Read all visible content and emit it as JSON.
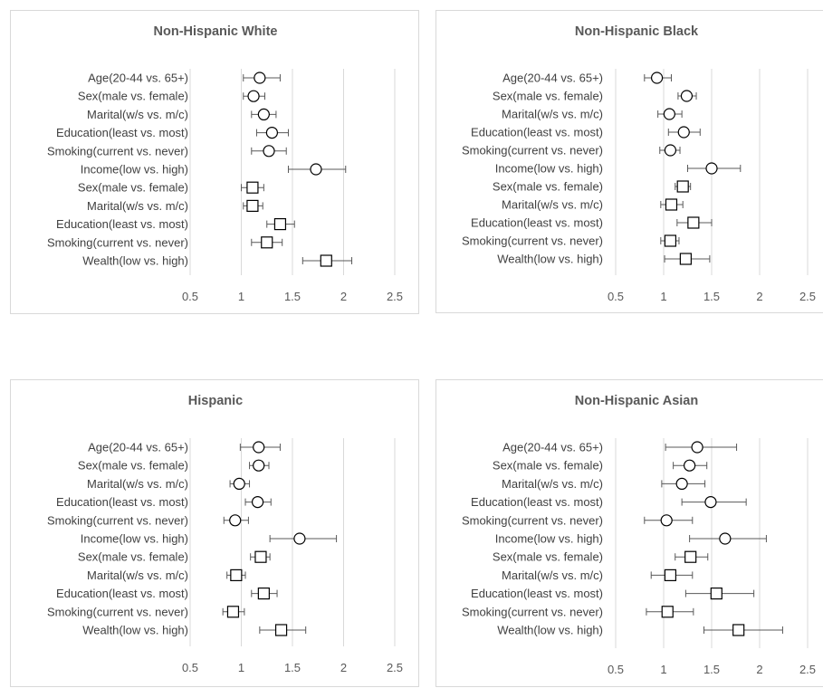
{
  "chart_data": [
    {
      "type": "scatter",
      "title": "Non-Hispanic White",
      "xlim": [
        0.5,
        2.5
      ],
      "xticks": [
        "0.5",
        "1",
        "1.5",
        "2",
        "2.5"
      ],
      "grid": true,
      "rows": [
        {
          "label": "Age(20-44 vs. 65+)",
          "marker": "circle",
          "value": 1.18,
          "ci": [
            1.02,
            1.38
          ]
        },
        {
          "label": "Sex(male vs. female)",
          "marker": "circle",
          "value": 1.12,
          "ci": [
            1.02,
            1.23
          ]
        },
        {
          "label": "Marital(w/s vs. m/c)",
          "marker": "circle",
          "value": 1.22,
          "ci": [
            1.1,
            1.34
          ]
        },
        {
          "label": "Education(least vs. most)",
          "marker": "circle",
          "value": 1.3,
          "ci": [
            1.15,
            1.46
          ]
        },
        {
          "label": "Smoking(current vs. never)",
          "marker": "circle",
          "value": 1.27,
          "ci": [
            1.1,
            1.44
          ]
        },
        {
          "label": "Income(low vs. high)",
          "marker": "circle",
          "value": 1.73,
          "ci": [
            1.46,
            2.02
          ]
        },
        {
          "label": "Sex(male vs. female)",
          "marker": "square",
          "value": 1.11,
          "ci": [
            1.0,
            1.22
          ]
        },
        {
          "label": "Marital(w/s vs. m/c)",
          "marker": "square",
          "value": 1.11,
          "ci": [
            1.02,
            1.21
          ]
        },
        {
          "label": "Education(least vs. most)",
          "marker": "square",
          "value": 1.38,
          "ci": [
            1.25,
            1.52
          ]
        },
        {
          "label": "Smoking(current vs. never)",
          "marker": "square",
          "value": 1.25,
          "ci": [
            1.1,
            1.4
          ]
        },
        {
          "label": "Wealth(low vs. high)",
          "marker": "square",
          "value": 1.83,
          "ci": [
            1.6,
            2.08
          ]
        }
      ]
    },
    {
      "type": "scatter",
      "title": "Non-Hispanic Black",
      "xlim": [
        0.5,
        2.5
      ],
      "xticks": [
        "0.5",
        "1",
        "1.5",
        "2",
        "2.5"
      ],
      "grid": true,
      "rows": [
        {
          "label": "Age(20-44 vs. 65+)",
          "marker": "circle",
          "value": 0.93,
          "ci": [
            0.8,
            1.08
          ]
        },
        {
          "label": "Sex(male vs. female)",
          "marker": "circle",
          "value": 1.24,
          "ci": [
            1.15,
            1.34
          ]
        },
        {
          "label": "Marital(w/s vs. m/c)",
          "marker": "circle",
          "value": 1.06,
          "ci": [
            0.94,
            1.19
          ]
        },
        {
          "label": "Education(least vs. most)",
          "marker": "circle",
          "value": 1.21,
          "ci": [
            1.05,
            1.38
          ]
        },
        {
          "label": "Smoking(current vs. never)",
          "marker": "circle",
          "value": 1.07,
          "ci": [
            0.96,
            1.17
          ]
        },
        {
          "label": "Income(low vs. high)",
          "marker": "circle",
          "value": 1.5,
          "ci": [
            1.25,
            1.8
          ]
        },
        {
          "label": "Sex(male vs. female)",
          "marker": "square",
          "value": 1.2,
          "ci": [
            1.12,
            1.28
          ]
        },
        {
          "label": "Marital(w/s vs. m/c)",
          "marker": "square",
          "value": 1.08,
          "ci": [
            0.97,
            1.2
          ]
        },
        {
          "label": "Education(least vs. most)",
          "marker": "square",
          "value": 1.31,
          "ci": [
            1.14,
            1.5
          ]
        },
        {
          "label": "Smoking(current vs. never)",
          "marker": "square",
          "value": 1.07,
          "ci": [
            0.97,
            1.16
          ]
        },
        {
          "label": "Wealth(low vs. high)",
          "marker": "square",
          "value": 1.23,
          "ci": [
            1.01,
            1.48
          ]
        }
      ]
    },
    {
      "type": "scatter",
      "title": "Hispanic",
      "xlim": [
        0.5,
        2.5
      ],
      "xticks": [
        "0.5",
        "1",
        "1.5",
        "2",
        "2.5"
      ],
      "grid": true,
      "rows": [
        {
          "label": "Age(20-44 vs. 65+)",
          "marker": "circle",
          "value": 1.17,
          "ci": [
            0.99,
            1.38
          ]
        },
        {
          "label": "Sex(male vs. female)",
          "marker": "circle",
          "value": 1.17,
          "ci": [
            1.08,
            1.27
          ]
        },
        {
          "label": "Marital(w/s vs. m/c)",
          "marker": "circle",
          "value": 0.98,
          "ci": [
            0.89,
            1.08
          ]
        },
        {
          "label": "Education(least vs. most)",
          "marker": "circle",
          "value": 1.16,
          "ci": [
            1.04,
            1.29
          ]
        },
        {
          "label": "Smoking(current vs. never)",
          "marker": "circle",
          "value": 0.94,
          "ci": [
            0.83,
            1.07
          ]
        },
        {
          "label": "Income(low vs. high)",
          "marker": "circle",
          "value": 1.57,
          "ci": [
            1.28,
            1.93
          ]
        },
        {
          "label": "Sex(male vs. female)",
          "marker": "square",
          "value": 1.19,
          "ci": [
            1.09,
            1.28
          ]
        },
        {
          "label": "Marital(w/s vs. m/c)",
          "marker": "square",
          "value": 0.95,
          "ci": [
            0.86,
            1.04
          ]
        },
        {
          "label": "Education(least vs. most)",
          "marker": "square",
          "value": 1.22,
          "ci": [
            1.1,
            1.35
          ]
        },
        {
          "label": "Smoking(current vs. never)",
          "marker": "square",
          "value": 0.92,
          "ci": [
            0.82,
            1.03
          ]
        },
        {
          "label": "Wealth(low vs. high)",
          "marker": "square",
          "value": 1.39,
          "ci": [
            1.18,
            1.63
          ]
        }
      ]
    },
    {
      "type": "scatter",
      "title": "Non-Hispanic Asian",
      "xlim": [
        0.5,
        2.5
      ],
      "xticks": [
        "0.5",
        "1",
        "1.5",
        "2",
        "2.5"
      ],
      "grid": true,
      "rows": [
        {
          "label": "Age(20-44 vs. 65+)",
          "marker": "circle",
          "value": 1.35,
          "ci": [
            1.02,
            1.76
          ]
        },
        {
          "label": "Sex(male vs. female)",
          "marker": "circle",
          "value": 1.27,
          "ci": [
            1.1,
            1.45
          ]
        },
        {
          "label": "Marital(w/s vs. m/c)",
          "marker": "circle",
          "value": 1.19,
          "ci": [
            0.98,
            1.43
          ]
        },
        {
          "label": "Education(least vs. most)",
          "marker": "circle",
          "value": 1.49,
          "ci": [
            1.19,
            1.86
          ]
        },
        {
          "label": "Smoking(current vs. never)",
          "marker": "circle",
          "value": 1.03,
          "ci": [
            0.8,
            1.3
          ]
        },
        {
          "label": "Income(low vs. high)",
          "marker": "circle",
          "value": 1.64,
          "ci": [
            1.27,
            2.07
          ]
        },
        {
          "label": "Sex(male vs. female)",
          "marker": "square",
          "value": 1.28,
          "ci": [
            1.12,
            1.46
          ]
        },
        {
          "label": "Marital(w/s vs. m/c)",
          "marker": "square",
          "value": 1.07,
          "ci": [
            0.87,
            1.3
          ]
        },
        {
          "label": "Education(least vs. most)",
          "marker": "square",
          "value": 1.55,
          "ci": [
            1.23,
            1.94
          ]
        },
        {
          "label": "Smoking(current vs. never)",
          "marker": "square",
          "value": 1.04,
          "ci": [
            0.82,
            1.31
          ]
        },
        {
          "label": "Wealth(low vs. high)",
          "marker": "square",
          "value": 1.78,
          "ci": [
            1.42,
            2.24
          ]
        }
      ]
    }
  ]
}
